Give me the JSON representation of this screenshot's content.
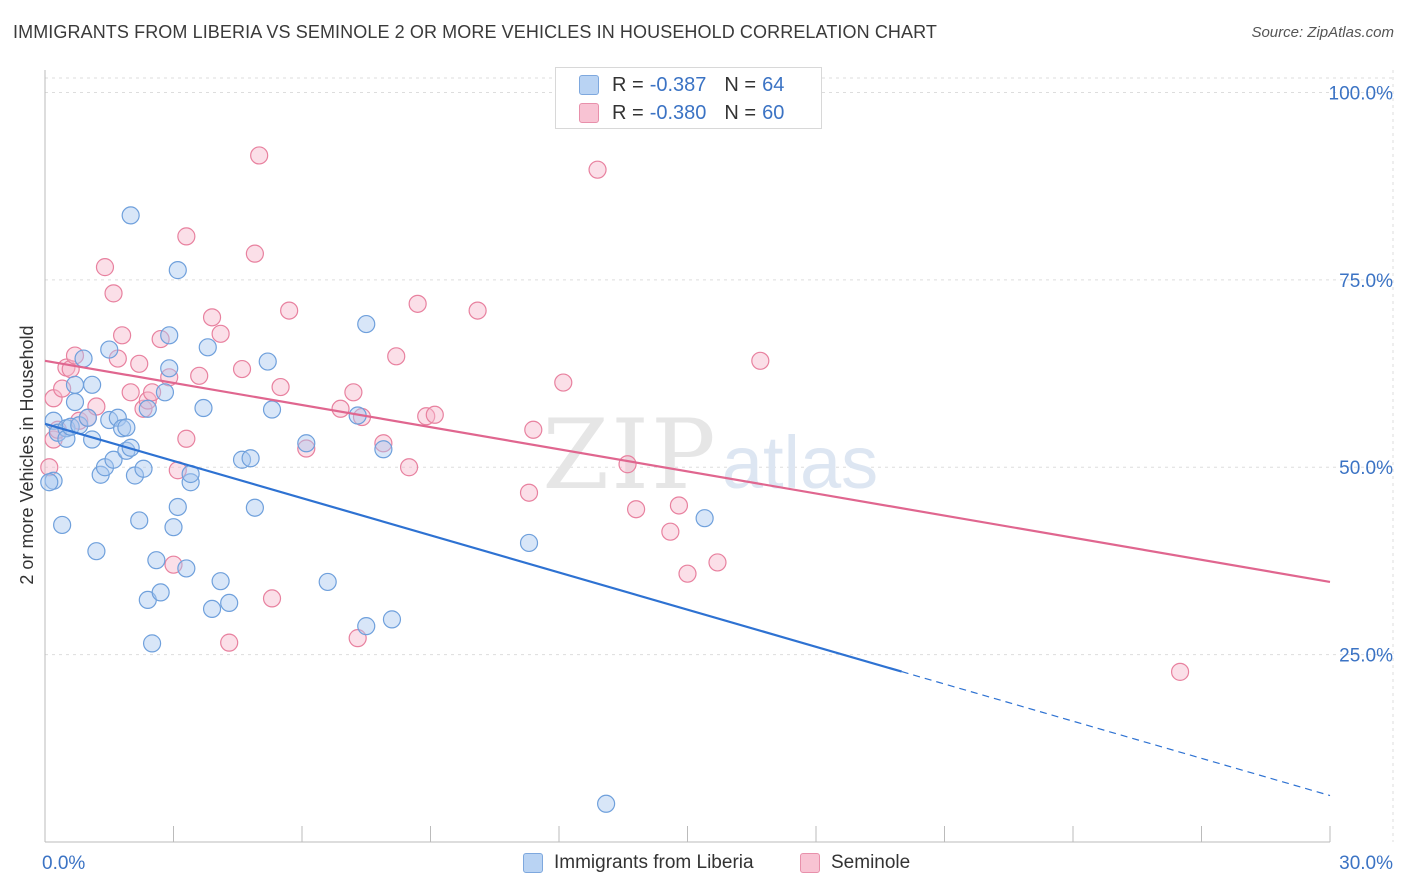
{
  "header": {
    "title": "IMMIGRANTS FROM LIBERIA VS SEMINOLE 2 OR MORE VEHICLES IN HOUSEHOLD CORRELATION CHART",
    "source": "Source: ZipAtlas.com"
  },
  "watermark": {
    "zip": "ZIP",
    "atlas": "atlas"
  },
  "legend": {
    "r_label": "R =",
    "n_label": "N =",
    "rows": [
      {
        "series": "Immigrants from Liberia",
        "r": "-0.387",
        "n": "64",
        "color": "#6fa0dc"
      },
      {
        "series": "Seminole",
        "r": "-0.380",
        "n": "60",
        "color": "#e8819f"
      }
    ]
  },
  "bottom_legend": {
    "items": [
      "Immigrants from Liberia",
      "Seminole"
    ]
  },
  "colors": {
    "blue_fill": "#a9c8ef",
    "blue_stroke": "#6fa0dc",
    "blue_line": "#2e72d2",
    "pink_fill": "#f7b9cc",
    "pink_stroke": "#e8819f",
    "pink_line": "#e0668f",
    "tick_label": "#3b73c4",
    "grid": "#dddddd"
  },
  "chart_data": {
    "type": "scatter",
    "title": "IMMIGRANTS FROM LIBERIA VS SEMINOLE 2 OR MORE VEHICLES IN HOUSEHOLD CORRELATION CHART",
    "xlabel": "",
    "ylabel": "2 or more Vehicles in Household",
    "xlim": [
      0,
      30
    ],
    "ylim": [
      0,
      103
    ],
    "x_tick_labels": [
      "0.0%",
      "30.0%"
    ],
    "y_ticks": [
      25,
      50,
      75,
      100
    ],
    "y_tick_labels": [
      "25.0%",
      "50.0%",
      "75.0%",
      "100.0%"
    ],
    "grid": true,
    "legend_position": "top-center",
    "series": [
      {
        "name": "Immigrants from Liberia",
        "points": [
          [
            0.2,
            48.2
          ],
          [
            0.2,
            56.2
          ],
          [
            0.3,
            54.6
          ],
          [
            0.4,
            42.3
          ],
          [
            0.5,
            55.2
          ],
          [
            0.5,
            53.8
          ],
          [
            0.6,
            55.4
          ],
          [
            0.7,
            58.7
          ],
          [
            0.7,
            61.0
          ],
          [
            0.8,
            55.6
          ],
          [
            0.9,
            64.5
          ],
          [
            1.0,
            56.6
          ],
          [
            1.1,
            61.0
          ],
          [
            1.1,
            53.7
          ],
          [
            1.2,
            38.8
          ],
          [
            1.3,
            49.0
          ],
          [
            1.4,
            50.0
          ],
          [
            1.5,
            56.3
          ],
          [
            1.5,
            65.7
          ],
          [
            1.6,
            51.0
          ],
          [
            1.7,
            56.6
          ],
          [
            1.8,
            55.2
          ],
          [
            1.9,
            52.2
          ],
          [
            1.9,
            55.3
          ],
          [
            2.0,
            52.6
          ],
          [
            2.0,
            83.6
          ],
          [
            2.1,
            48.9
          ],
          [
            2.2,
            42.9
          ],
          [
            2.3,
            49.8
          ],
          [
            2.4,
            57.8
          ],
          [
            2.4,
            32.3
          ],
          [
            2.5,
            26.5
          ],
          [
            2.6,
            37.6
          ],
          [
            2.7,
            33.3
          ],
          [
            2.8,
            60.0
          ],
          [
            2.9,
            67.6
          ],
          [
            2.9,
            63.2
          ],
          [
            3.0,
            42.0
          ],
          [
            3.1,
            76.3
          ],
          [
            3.1,
            44.7
          ],
          [
            3.3,
            36.5
          ],
          [
            3.4,
            48.0
          ],
          [
            3.4,
            49.1
          ],
          [
            3.7,
            57.9
          ],
          [
            3.8,
            66.0
          ],
          [
            3.9,
            31.1
          ],
          [
            4.1,
            34.8
          ],
          [
            4.3,
            31.9
          ],
          [
            4.6,
            51.0
          ],
          [
            4.8,
            51.2
          ],
          [
            4.9,
            44.6
          ],
          [
            5.2,
            64.1
          ],
          [
            5.3,
            57.7
          ],
          [
            6.1,
            53.2
          ],
          [
            6.6,
            34.7
          ],
          [
            7.3,
            56.9
          ],
          [
            7.5,
            28.8
          ],
          [
            7.5,
            69.1
          ],
          [
            7.9,
            52.4
          ],
          [
            8.1,
            29.7
          ],
          [
            11.3,
            39.9
          ],
          [
            13.1,
            5.1
          ],
          [
            15.4,
            43.2
          ],
          [
            0.1,
            48.0
          ]
        ]
      },
      {
        "name": "Seminole",
        "points": [
          [
            0.1,
            50.0
          ],
          [
            0.2,
            53.7
          ],
          [
            0.2,
            59.2
          ],
          [
            0.4,
            60.5
          ],
          [
            0.5,
            63.3
          ],
          [
            0.6,
            63.1
          ],
          [
            0.7,
            64.9
          ],
          [
            0.8,
            56.2
          ],
          [
            1.0,
            56.6
          ],
          [
            1.2,
            58.1
          ],
          [
            1.4,
            76.7
          ],
          [
            1.6,
            73.2
          ],
          [
            1.7,
            64.5
          ],
          [
            1.8,
            67.6
          ],
          [
            2.0,
            60.0
          ],
          [
            2.2,
            63.8
          ],
          [
            2.3,
            57.8
          ],
          [
            2.4,
            58.9
          ],
          [
            2.5,
            60.0
          ],
          [
            2.7,
            67.1
          ],
          [
            2.9,
            62.0
          ],
          [
            3.0,
            37.0
          ],
          [
            3.1,
            49.6
          ],
          [
            3.3,
            53.8
          ],
          [
            3.3,
            80.8
          ],
          [
            3.6,
            62.2
          ],
          [
            3.9,
            70.0
          ],
          [
            4.1,
            67.8
          ],
          [
            4.3,
            26.6
          ],
          [
            4.6,
            63.1
          ],
          [
            4.9,
            78.5
          ],
          [
            5.0,
            91.6
          ],
          [
            5.3,
            32.5
          ],
          [
            5.5,
            60.7
          ],
          [
            5.7,
            70.9
          ],
          [
            6.1,
            52.5
          ],
          [
            6.9,
            57.8
          ],
          [
            7.2,
            60.0
          ],
          [
            7.3,
            27.2
          ],
          [
            7.4,
            56.7
          ],
          [
            7.9,
            53.2
          ],
          [
            8.2,
            64.8
          ],
          [
            8.5,
            50.0
          ],
          [
            8.7,
            71.8
          ],
          [
            8.9,
            56.8
          ],
          [
            9.1,
            57.0
          ],
          [
            10.1,
            70.9
          ],
          [
            11.3,
            46.6
          ],
          [
            11.4,
            55.0
          ],
          [
            12.1,
            61.3
          ],
          [
            12.9,
            89.7
          ],
          [
            13.6,
            50.4
          ],
          [
            13.8,
            44.4
          ],
          [
            14.6,
            41.4
          ],
          [
            14.8,
            44.9
          ],
          [
            15.0,
            35.8
          ],
          [
            15.7,
            37.3
          ],
          [
            16.7,
            64.2
          ],
          [
            26.5,
            22.7
          ],
          [
            0.3,
            55.0
          ]
        ]
      }
    ],
    "trend_lines": [
      {
        "series": "Immigrants from Liberia",
        "x": [
          0,
          30
        ],
        "y": [
          55.8,
          6.2
        ],
        "solid_until_x": 20.0
      },
      {
        "series": "Seminole",
        "x": [
          0,
          30
        ],
        "y": [
          64.2,
          34.7
        ]
      }
    ]
  }
}
